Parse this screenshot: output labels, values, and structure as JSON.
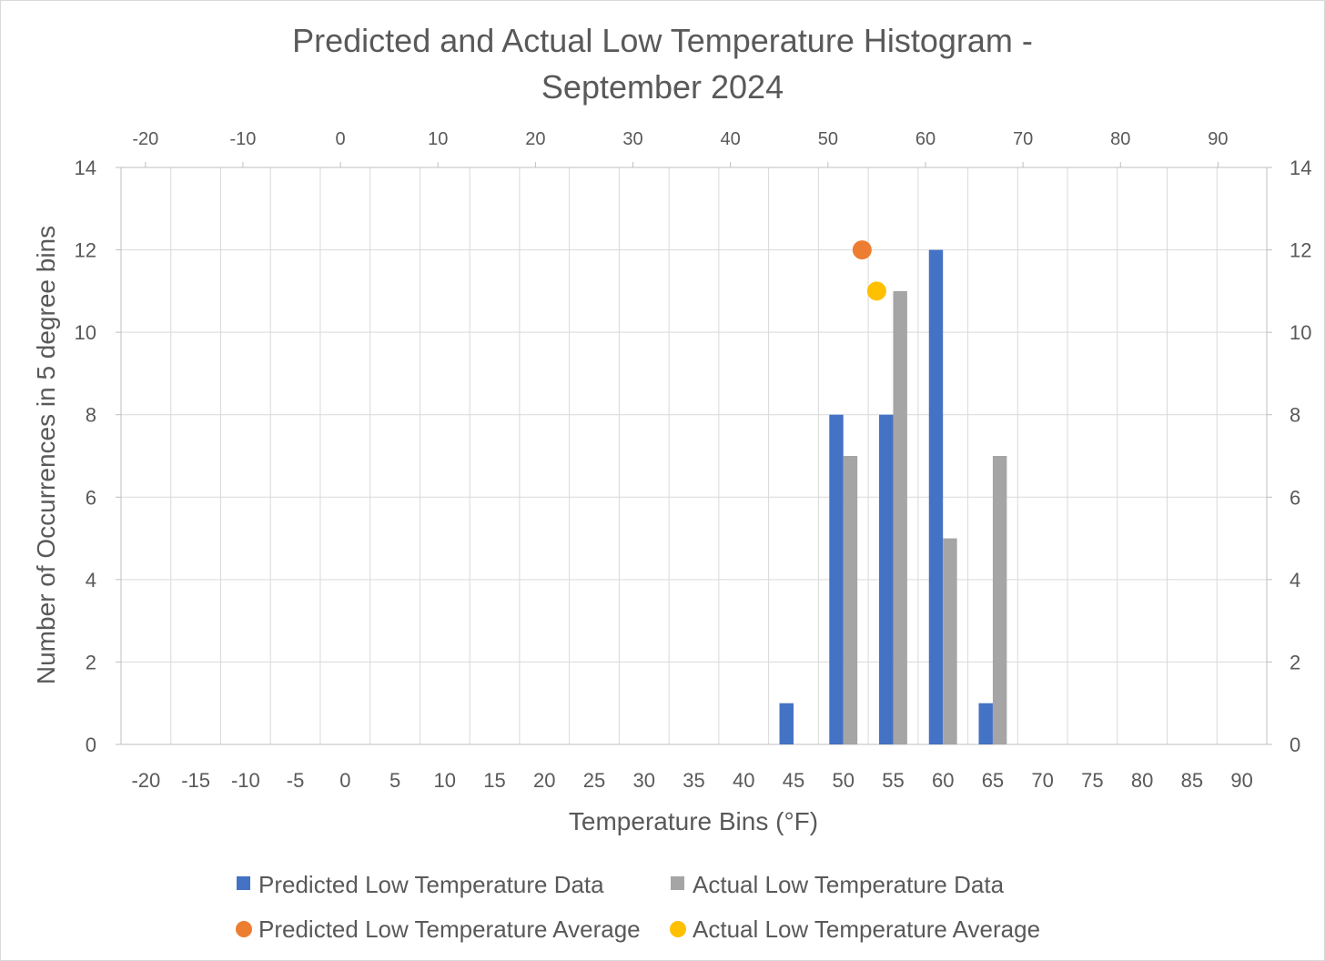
{
  "chart_data": {
    "type": "bar",
    "title_lines": [
      "Predicted and Actual Low Temperature Histogram -",
      "September 2024"
    ],
    "xlabel": "Temperature Bins (°F)",
    "ylabel": "Number of Occurrences in 5 degree bins",
    "categories": [
      "-20",
      "-15",
      "-10",
      "-5",
      "0",
      "5",
      "10",
      "15",
      "20",
      "25",
      "30",
      "35",
      "40",
      "45",
      "50",
      "55",
      "60",
      "65",
      "70",
      "75",
      "80",
      "85",
      "90"
    ],
    "ylim": [
      0,
      14
    ],
    "yticks": [
      0,
      2,
      4,
      6,
      8,
      10,
      12,
      14
    ],
    "secondary_xlim": [
      -22.5,
      95
    ],
    "secondary_xticks": [
      -20,
      -10,
      0,
      10,
      20,
      30,
      40,
      50,
      60,
      70,
      80,
      90
    ],
    "grid": true,
    "legend_position": "bottom",
    "series": [
      {
        "name": "Predicted Low Temperature Data",
        "kind": "bar",
        "color": "#4472C4",
        "values": [
          0,
          0,
          0,
          0,
          0,
          0,
          0,
          0,
          0,
          0,
          0,
          0,
          0,
          1,
          8,
          8,
          12,
          1,
          0,
          0,
          0,
          0,
          0
        ]
      },
      {
        "name": "Actual Low Temperature Data",
        "kind": "bar",
        "color": "#A5A5A5",
        "values": [
          0,
          0,
          0,
          0,
          0,
          0,
          0,
          0,
          0,
          0,
          0,
          0,
          0,
          0,
          7,
          11,
          5,
          7,
          0,
          0,
          0,
          0,
          0
        ]
      },
      {
        "name": "Predicted Low Temperature Average",
        "kind": "scatter",
        "color": "#ED7D31",
        "points": [
          {
            "x": 53.5,
            "y": 12
          }
        ]
      },
      {
        "name": "Actual Low Temperature Average",
        "kind": "scatter",
        "color": "#FFC000",
        "points": [
          {
            "x": 55,
            "y": 11
          }
        ]
      }
    ]
  }
}
